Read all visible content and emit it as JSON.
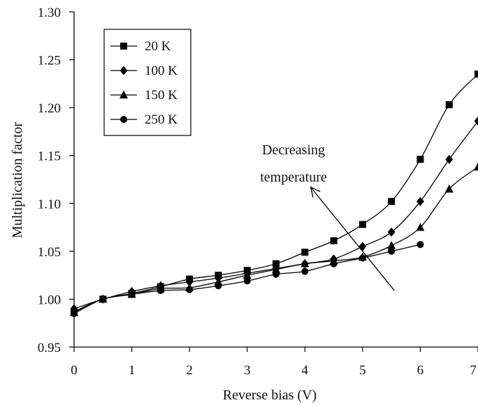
{
  "chart_data": {
    "type": "line",
    "xlabel": "Reverse bias (V)",
    "ylabel": "Multiplication factor",
    "xlim": [
      0,
      7
    ],
    "ylim": [
      0.95,
      1.3
    ],
    "xticks": [
      "0",
      "1",
      "2",
      "3",
      "4",
      "5",
      "6",
      "7"
    ],
    "yticks": [
      "0.95",
      "1.00",
      "1.05",
      "1.10",
      "1.15",
      "1.20",
      "1.25",
      "1.30"
    ],
    "grid": false,
    "legend_position": "top-left",
    "annotation": {
      "lines": [
        "Decreasing",
        "temperature"
      ],
      "arrow_from": [
        5.55,
        1.009
      ],
      "arrow_to": [
        4.1,
        1.117
      ]
    },
    "series": [
      {
        "name": "20 K",
        "marker": "square",
        "x": [
          0,
          0.5,
          1,
          1.5,
          2,
          2.5,
          3,
          3.5,
          4,
          4.5,
          5,
          5.5,
          6,
          6.5,
          7
        ],
        "y": [
          0.987,
          1.0,
          1.006,
          1.013,
          1.021,
          1.025,
          1.03,
          1.037,
          1.049,
          1.061,
          1.078,
          1.102,
          1.146,
          1.203,
          1.235
        ]
      },
      {
        "name": "100 K",
        "marker": "diamond",
        "x": [
          0,
          0.5,
          1,
          1.5,
          2,
          2.5,
          3,
          3.5,
          4,
          4.5,
          5,
          5.5,
          6,
          6.5,
          7
        ],
        "y": [
          0.99,
          1.0,
          1.008,
          1.014,
          1.018,
          1.022,
          1.027,
          1.032,
          1.037,
          1.042,
          1.055,
          1.07,
          1.102,
          1.146,
          1.186
        ]
      },
      {
        "name": "150 K",
        "marker": "triangle",
        "x": [
          0,
          0.5,
          1,
          1.5,
          2,
          2.5,
          3,
          3.5,
          4,
          4.5,
          5,
          5.5,
          6,
          6.5,
          7
        ],
        "y": [
          0.986,
          1.0,
          1.005,
          1.011,
          1.012,
          1.018,
          1.025,
          1.031,
          1.037,
          1.04,
          1.044,
          1.056,
          1.075,
          1.115,
          1.138
        ]
      },
      {
        "name": "250 K",
        "marker": "circle",
        "x": [
          0,
          0.5,
          1,
          1.5,
          2,
          2.5,
          3,
          3.5,
          4,
          4.5,
          5,
          5.5,
          6
        ],
        "y": [
          0.985,
          1.0,
          1.005,
          1.009,
          1.01,
          1.014,
          1.019,
          1.026,
          1.029,
          1.037,
          1.043,
          1.05,
          1.057
        ]
      }
    ]
  }
}
